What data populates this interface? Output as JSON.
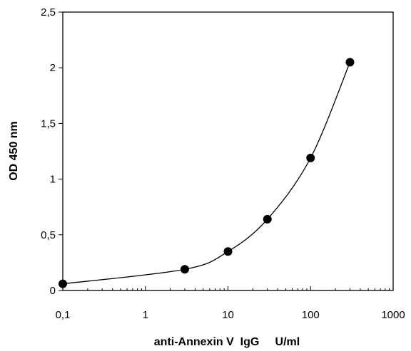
{
  "chart_data": {
    "type": "scatter",
    "xscale": "log",
    "xlim": [
      0.1,
      1000
    ],
    "ylim": [
      0,
      2.5
    ],
    "xlabel": "anti-Annexin V  IgG     U/ml",
    "ylabel": "OD 450 nm",
    "xticks": [
      0.1,
      1,
      10,
      100,
      1000
    ],
    "xtick_labels": [
      "0,1",
      "1",
      "10",
      "100",
      "1000"
    ],
    "yticks": [
      0,
      0.5,
      1,
      1.5,
      2,
      2.5
    ],
    "ytick_labels": [
      "0",
      "0,5",
      "1",
      "1,5",
      "2",
      "2,5"
    ],
    "grid": false,
    "series": [
      {
        "x": [
          0.1,
          3,
          10,
          30,
          100,
          300
        ],
        "y": [
          0.06,
          0.19,
          0.35,
          0.64,
          1.19,
          2.05
        ],
        "marker": "circle",
        "color": "#000000",
        "smooth_line": true
      }
    ]
  }
}
